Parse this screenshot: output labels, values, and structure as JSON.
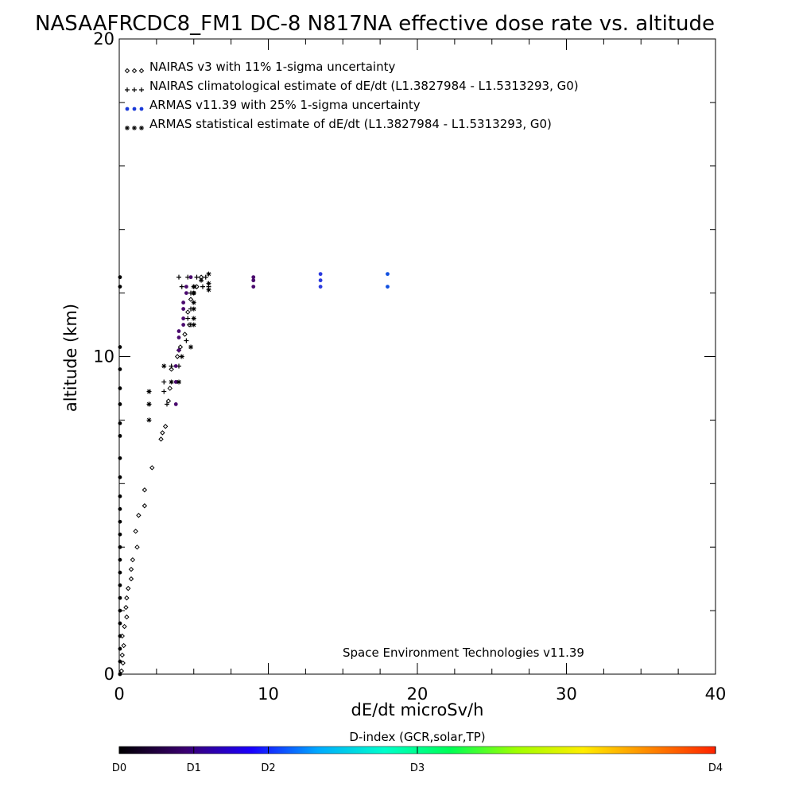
{
  "chart_data": {
    "type": "scatter",
    "title": "NASAAFRCDC8_FM1 DC-8   N817NA effective dose rate vs. altitude",
    "xlabel": "dE/dt microSv/h",
    "ylabel": "altitude (km)",
    "xlim": [
      0,
      40
    ],
    "ylim": [
      0,
      20
    ],
    "x_ticks": [
      "0",
      "10",
      "20",
      "30",
      "40"
    ],
    "y_ticks": [
      "0",
      "10",
      "20"
    ],
    "grid": false,
    "legend_position": "top-left",
    "legend": [
      {
        "label": "NAIRAS v3 with 11% 1-sigma uncertainty",
        "marker": "diamond"
      },
      {
        "label": "NAIRAS climatological estimate of dE/dt (L1.3827984 - L1.5313293, G0)",
        "marker": "plus"
      },
      {
        "label": "ARMAS v11.39 with 25% 1-sigma uncertainty",
        "marker": "dot"
      },
      {
        "label": "ARMAS statistical estimate of dE/dt (L1.3827984 - L1.5313293, G0)",
        "marker": "asterisk"
      }
    ],
    "annotation": "Space Environment Technologies v11.39",
    "series": [
      {
        "name": "NAIRAS v3 with 11% 1-sigma uncertainty",
        "marker": "diamond",
        "points": [
          [
            0.15,
            0.1
          ],
          [
            0.25,
            0.35
          ],
          [
            0.2,
            0.6
          ],
          [
            0.3,
            0.9
          ],
          [
            0.2,
            1.2
          ],
          [
            0.35,
            1.5
          ],
          [
            0.5,
            1.8
          ],
          [
            0.45,
            2.1
          ],
          [
            0.5,
            2.4
          ],
          [
            0.6,
            2.7
          ],
          [
            0.8,
            3.0
          ],
          [
            0.8,
            3.3
          ],
          [
            0.9,
            3.6
          ],
          [
            1.2,
            4.0
          ],
          [
            1.1,
            4.5
          ],
          [
            1.3,
            5.0
          ],
          [
            1.7,
            5.3
          ],
          [
            1.7,
            5.8
          ],
          [
            2.2,
            6.5
          ],
          [
            2.8,
            7.4
          ],
          [
            2.9,
            7.6
          ],
          [
            3.1,
            7.8
          ],
          [
            3.3,
            8.6
          ],
          [
            3.4,
            9.0
          ],
          [
            3.5,
            9.6
          ],
          [
            3.9,
            10.0
          ],
          [
            4.1,
            10.3
          ],
          [
            4.4,
            10.7
          ],
          [
            4.7,
            11.0
          ],
          [
            4.6,
            11.4
          ],
          [
            4.8,
            11.8
          ],
          [
            5.0,
            12.0
          ],
          [
            5.2,
            12.2
          ],
          [
            5.5,
            12.5
          ]
        ]
      },
      {
        "name": "NAIRAS climatological estimate of dE/dt (L1.3827984 - L1.5313293, G0)",
        "marker": "plus",
        "points": [
          [
            2.0,
            8.5
          ],
          [
            3.2,
            8.5
          ],
          [
            2.0,
            8.9
          ],
          [
            3.0,
            8.9
          ],
          [
            3.0,
            9.2
          ],
          [
            3.5,
            9.7
          ],
          [
            4.0,
            9.7
          ],
          [
            4.0,
            10.2
          ],
          [
            4.5,
            10.5
          ],
          [
            4.8,
            11.0
          ],
          [
            4.6,
            11.2
          ],
          [
            4.8,
            11.5
          ],
          [
            4.8,
            12.0
          ],
          [
            4.2,
            12.2
          ],
          [
            5.0,
            12.2
          ],
          [
            5.6,
            12.2
          ],
          [
            6.0,
            12.2
          ],
          [
            4.0,
            12.5
          ],
          [
            4.6,
            12.5
          ],
          [
            5.2,
            12.5
          ],
          [
            5.8,
            12.5
          ]
        ]
      },
      {
        "name": "ARMAS v11.39 with 25% 1-sigma uncertainty",
        "marker": "dot",
        "points": [
          [
            0.05,
            0.0
          ],
          [
            0.05,
            0.4
          ],
          [
            0.05,
            0.8
          ],
          [
            0.05,
            1.2
          ],
          [
            0.05,
            1.6
          ],
          [
            0.05,
            2.0
          ],
          [
            0.05,
            2.4
          ],
          [
            0.05,
            2.8
          ],
          [
            0.05,
            3.2
          ],
          [
            0.05,
            3.6
          ],
          [
            0.05,
            4.0
          ],
          [
            0.05,
            4.4
          ],
          [
            0.05,
            4.8
          ],
          [
            0.05,
            5.2
          ],
          [
            0.05,
            5.6
          ],
          [
            0.05,
            6.2
          ],
          [
            0.05,
            6.8
          ],
          [
            0.05,
            7.5
          ],
          [
            0.05,
            7.9
          ],
          [
            0.05,
            8.5
          ],
          [
            0.05,
            9.0
          ],
          [
            0.05,
            9.6
          ],
          [
            0.05,
            10.3
          ],
          [
            0.05,
            12.2
          ],
          [
            0.05,
            12.5
          ],
          [
            3.8,
            8.5
          ],
          [
            3.8,
            9.2
          ],
          [
            3.8,
            9.7
          ],
          [
            4.0,
            10.2
          ],
          [
            4.0,
            10.6
          ],
          [
            4.0,
            10.8
          ],
          [
            4.3,
            11.0
          ],
          [
            4.3,
            11.2
          ],
          [
            4.3,
            11.5
          ],
          [
            4.3,
            11.7
          ],
          [
            4.5,
            12.0
          ],
          [
            4.5,
            12.2
          ],
          [
            4.8,
            12.5
          ],
          [
            9.0,
            12.2
          ],
          [
            9.0,
            12.4
          ],
          [
            9.0,
            12.5
          ],
          [
            13.5,
            12.2
          ],
          [
            13.5,
            12.4
          ],
          [
            13.5,
            12.6
          ],
          [
            18.0,
            12.2
          ],
          [
            18.0,
            12.6
          ]
        ]
      },
      {
        "name": "ARMAS statistical estimate of dE/dt (L1.3827984 - L1.5313293, G0)",
        "marker": "asterisk",
        "points": [
          [
            2.0,
            8.0
          ],
          [
            2.0,
            8.5
          ],
          [
            2.0,
            8.9
          ],
          [
            3.0,
            9.7
          ],
          [
            3.5,
            9.2
          ],
          [
            4.0,
            9.2
          ],
          [
            4.2,
            10.0
          ],
          [
            4.8,
            10.3
          ],
          [
            5.0,
            11.0
          ],
          [
            5.0,
            11.2
          ],
          [
            5.0,
            11.5
          ],
          [
            5.0,
            11.7
          ],
          [
            5.0,
            12.0
          ],
          [
            5.0,
            12.2
          ],
          [
            6.0,
            12.1
          ],
          [
            6.0,
            12.3
          ],
          [
            5.5,
            12.4
          ],
          [
            6.0,
            12.6
          ]
        ]
      }
    ],
    "colorbar": {
      "title": "D-index (GCR,solar,TP)",
      "labels": [
        "D0",
        "D1",
        "D2",
        "D3",
        "D4"
      ],
      "label_values": [
        0,
        0.25,
        0.5,
        1.0,
        2.0
      ],
      "range": [
        0,
        2.0
      ],
      "colors": [
        "#000000",
        "#3a0070",
        "#1a00ff",
        "#00aaff",
        "#00ffcc",
        "#00ff55",
        "#a0ff00",
        "#ffee00",
        "#ff8800",
        "#ff2200"
      ]
    },
    "colors": {
      "nairas": "#000000",
      "armas_low": "#4a0a6e",
      "armas_high": "#1050e0",
      "axis": "#000000"
    }
  }
}
